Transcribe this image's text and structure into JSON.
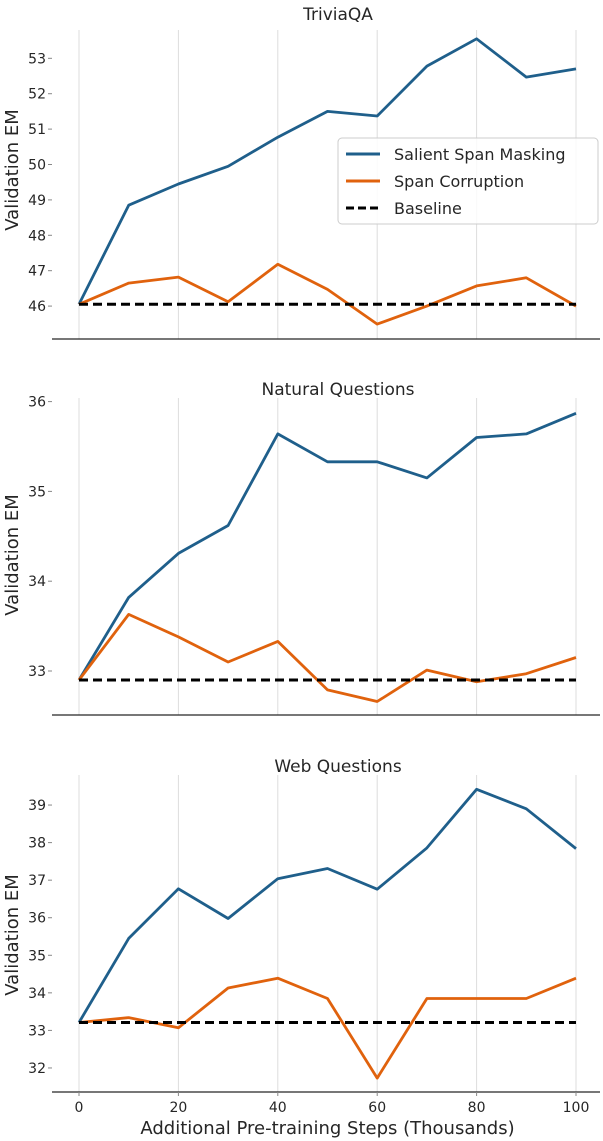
{
  "chart_data": [
    {
      "type": "line",
      "title": "TriviaQA",
      "xlabel": "",
      "ylabel": "Validation EM",
      "x": [
        0,
        10,
        20,
        30,
        40,
        50,
        60,
        70,
        80,
        90,
        100
      ],
      "xticks": [
        0,
        20,
        40,
        60,
        80,
        100
      ],
      "yticks": [
        46,
        47,
        48,
        49,
        50,
        51,
        52,
        53
      ],
      "ylim": [
        45.07,
        53.8
      ],
      "xlim": [
        -5,
        105
      ],
      "grid": "vertical",
      "legend": "center-right",
      "series": [
        {
          "name": "Salient Span Masking",
          "color": "#1f5f8b",
          "style": "solid",
          "values": [
            46.05,
            48.85,
            49.45,
            49.95,
            50.77,
            51.5,
            51.37,
            52.78,
            53.55,
            52.47,
            52.7
          ]
        },
        {
          "name": "Span Corruption",
          "color": "#e0620d",
          "style": "solid",
          "values": [
            46.05,
            46.65,
            46.82,
            46.12,
            47.18,
            46.47,
            45.49,
            46.0,
            46.57,
            46.8,
            46.0
          ]
        },
        {
          "name": "Baseline",
          "color": "#000000",
          "style": "dashed",
          "values": [
            46.05,
            46.05,
            46.05,
            46.05,
            46.05,
            46.05,
            46.05,
            46.05,
            46.05,
            46.05,
            46.05
          ]
        }
      ]
    },
    {
      "type": "line",
      "title": "Natural Questions",
      "xlabel": "",
      "ylabel": "Validation EM",
      "x": [
        0,
        10,
        20,
        30,
        40,
        50,
        60,
        70,
        80,
        90,
        100
      ],
      "xticks": [
        0,
        20,
        40,
        60,
        80,
        100
      ],
      "yticks": [
        33,
        34,
        35,
        36
      ],
      "ylim": [
        32.51,
        36.04
      ],
      "xlim": [
        -5,
        105
      ],
      "grid": "vertical",
      "series": [
        {
          "name": "Salient Span Masking",
          "color": "#1f5f8b",
          "style": "solid",
          "values": [
            32.9,
            33.82,
            34.31,
            34.62,
            35.64,
            35.33,
            35.33,
            35.15,
            35.6,
            35.64,
            35.87
          ]
        },
        {
          "name": "Span Corruption",
          "color": "#e0620d",
          "style": "solid",
          "values": [
            32.9,
            33.63,
            33.38,
            33.1,
            33.33,
            32.79,
            32.66,
            33.01,
            32.88,
            32.97,
            33.15
          ]
        },
        {
          "name": "Baseline",
          "color": "#000000",
          "style": "dashed",
          "values": [
            32.9,
            32.9,
            32.9,
            32.9,
            32.9,
            32.9,
            32.9,
            32.9,
            32.9,
            32.9,
            32.9
          ]
        }
      ]
    },
    {
      "type": "line",
      "title": "Web Questions",
      "xlabel": "Additional Pre-training Steps (Thousands)",
      "ylabel": "Validation EM",
      "x": [
        0,
        10,
        20,
        30,
        40,
        50,
        60,
        70,
        80,
        90,
        100
      ],
      "xticks": [
        0,
        20,
        40,
        60,
        80,
        100
      ],
      "yticks": [
        32,
        33,
        34,
        35,
        36,
        37,
        38,
        39
      ],
      "ylim": [
        31.36,
        39.8
      ],
      "xlim": [
        -5,
        105
      ],
      "grid": "vertical",
      "series": [
        {
          "name": "Salient Span Masking",
          "color": "#1f5f8b",
          "style": "solid",
          "values": [
            33.21,
            35.45,
            36.77,
            35.98,
            37.04,
            37.31,
            36.76,
            37.86,
            39.42,
            38.9,
            37.84
          ]
        },
        {
          "name": "Span Corruption",
          "color": "#e0620d",
          "style": "solid",
          "values": [
            33.21,
            33.34,
            33.07,
            34.13,
            34.39,
            33.85,
            31.73,
            33.85,
            33.85,
            33.85,
            34.39
          ]
        },
        {
          "name": "Baseline",
          "color": "#000000",
          "style": "dashed",
          "values": [
            33.21,
            33.21,
            33.21,
            33.21,
            33.21,
            33.21,
            33.21,
            33.21,
            33.21,
            33.21,
            33.21
          ]
        }
      ]
    }
  ]
}
